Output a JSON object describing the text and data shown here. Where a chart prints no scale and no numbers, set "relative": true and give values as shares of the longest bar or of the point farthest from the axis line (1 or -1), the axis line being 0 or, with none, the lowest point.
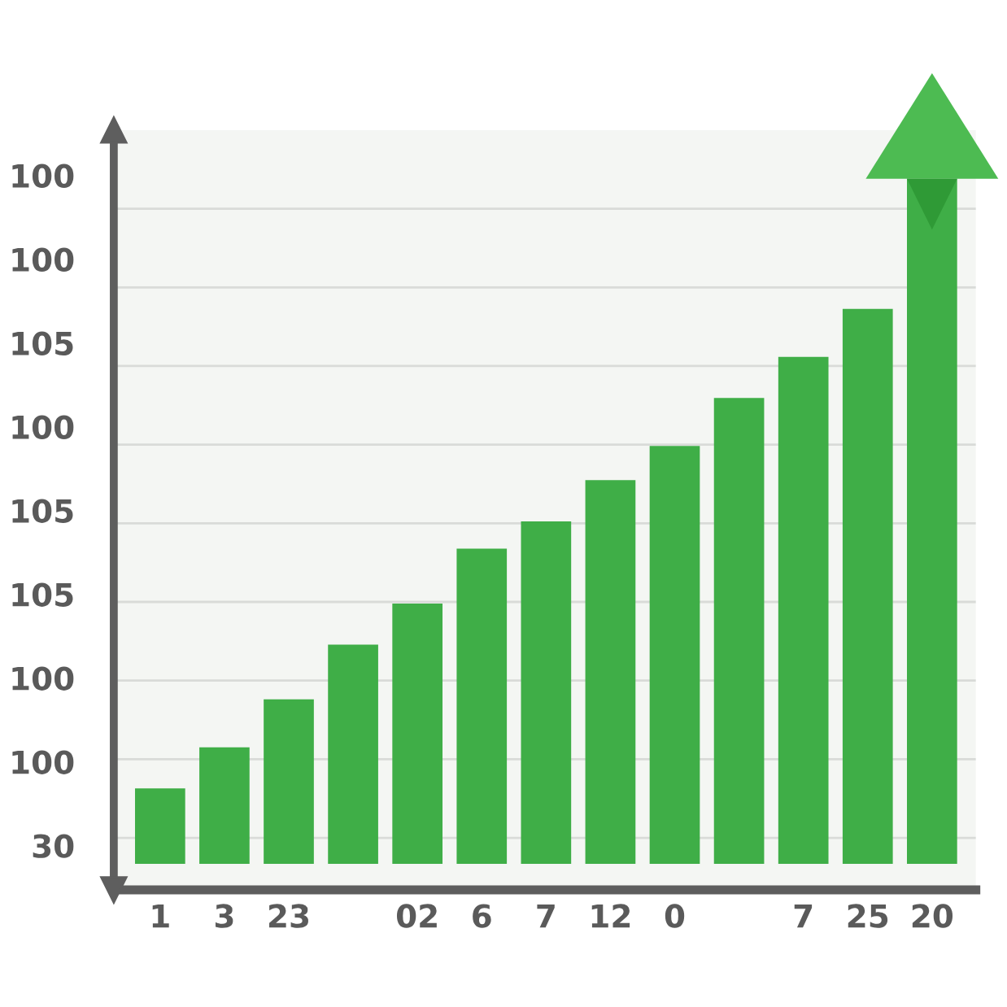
{
  "chart_data": {
    "type": "bar",
    "categories": [
      "1",
      "3",
      "23",
      null,
      "02",
      "6",
      "7",
      "12",
      "0",
      null,
      "7",
      "25",
      "20"
    ],
    "values": [
      0.11,
      0.17,
      0.24,
      0.32,
      0.38,
      0.46,
      0.5,
      0.56,
      0.61,
      0.68,
      0.74,
      0.81,
      1
    ],
    "color": "#3fae47",
    "relative": true,
    "annotations": [
      "100",
      "100",
      "105",
      "100",
      "105",
      "105",
      "100",
      "100",
      "30"
    ],
    "grid": "y"
  }
}
